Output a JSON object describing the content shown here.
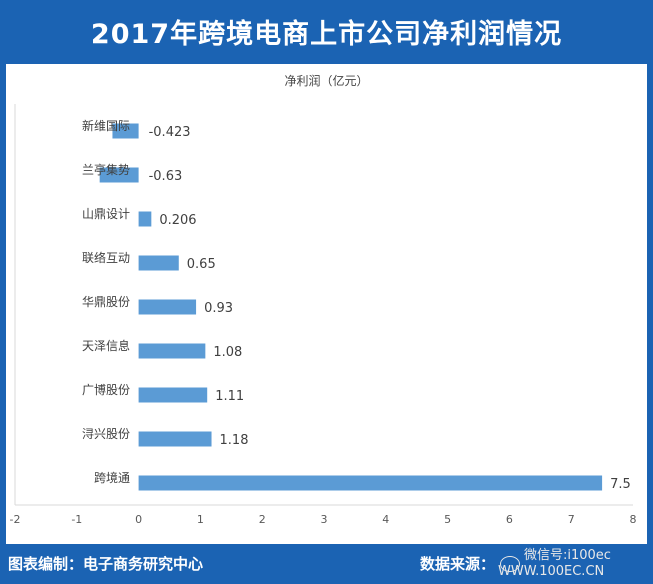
{
  "title": "2017年跨境电商上市公司净利润情况",
  "footer": {
    "left": "图表编制：电子商务研究中心",
    "source_label": "数据来源：",
    "watermark_line1": "微信号:i100ec",
    "watermark_line2": "WWW.100EC.CN"
  },
  "chart_data": {
    "type": "bar",
    "orientation": "horizontal",
    "title": "净利润（亿元）",
    "categories": [
      "新维国际",
      "兰亭集势",
      "山鼎设计",
      "联络互动",
      "华鼎股份",
      "天泽信息",
      "广博股份",
      "浔兴股份",
      "跨境通"
    ],
    "values": [
      -0.423,
      -0.63,
      0.206,
      0.65,
      0.93,
      1.08,
      1.11,
      1.18,
      7.5
    ],
    "value_labels": [
      "-0.423",
      "-0.63",
      "0.206",
      "0.65",
      "0.93",
      "1.08",
      "1.11",
      "1.18",
      "7.5"
    ],
    "xlim": [
      -2,
      8
    ],
    "xticks": [
      -2,
      -1,
      0,
      1,
      2,
      3,
      4,
      5,
      6,
      7,
      8
    ],
    "bar_color": "#5b9bd5",
    "grid": false
  },
  "colors": {
    "frame": "#1b63b3",
    "bar": "#5b9bd5"
  }
}
